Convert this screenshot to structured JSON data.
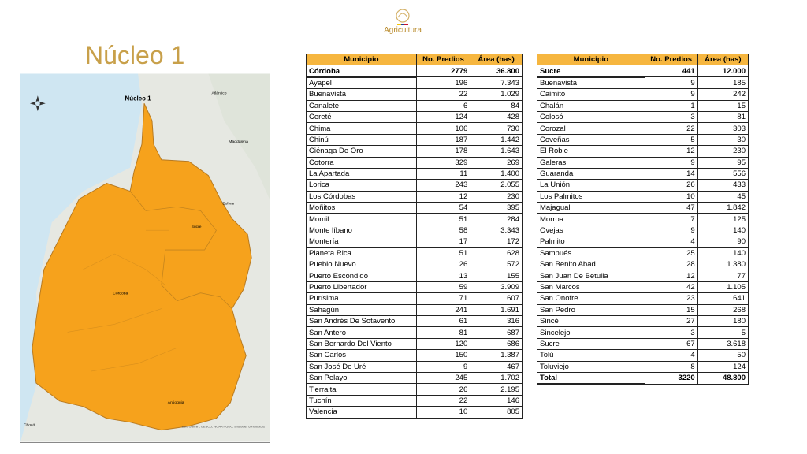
{
  "header": {
    "logo": "Agricultura",
    "title": "Núcleo 1"
  },
  "map": {
    "title": "Núcleo 1",
    "labels": [
      "Atlántico",
      "Magdalena",
      "Bolívar",
      "Sucre",
      "Córdoba",
      "Antioquia",
      "Chocó"
    ],
    "attribution": "Esri, Garmin, GEBCO, NOAA NGDC, and other contributors"
  },
  "tables": [
    {
      "columns": [
        "Municipio",
        "No. Predios",
        "Área (has)"
      ],
      "summary": [
        "Córdoba",
        2779,
        "36.800"
      ],
      "rows": [
        [
          "Ayapel",
          196,
          "7.343"
        ],
        [
          "Buenavista",
          22,
          "1.029"
        ],
        [
          "Canalete",
          6,
          "84"
        ],
        [
          "Cereté",
          124,
          "428"
        ],
        [
          "Chima",
          106,
          "730"
        ],
        [
          "Chinú",
          187,
          "1.442"
        ],
        [
          "Ciénaga De Oro",
          178,
          "1.643"
        ],
        [
          "Cotorra",
          329,
          "269"
        ],
        [
          "La Apartada",
          11,
          "1.400"
        ],
        [
          "Lorica",
          243,
          "2.055"
        ],
        [
          "Los Córdobas",
          12,
          "230"
        ],
        [
          "Moñitos",
          54,
          "395"
        ],
        [
          "Momil",
          51,
          "284"
        ],
        [
          "Monte líbano",
          58,
          "3.343"
        ],
        [
          "Montería",
          17,
          "172"
        ],
        [
          "Planeta Rica",
          51,
          "628"
        ],
        [
          "Pueblo Nuevo",
          26,
          "572"
        ],
        [
          "Puerto Escondido",
          13,
          "155"
        ],
        [
          "Puerto Libertador",
          59,
          "3.909"
        ],
        [
          "Purísima",
          71,
          "607"
        ],
        [
          "Sahagún",
          241,
          "1.691"
        ],
        [
          "San Andrés De Sotavento",
          61,
          "316"
        ],
        [
          "San Antero",
          81,
          "687"
        ],
        [
          "San Bernardo Del Viento",
          120,
          "686"
        ],
        [
          "San Carlos",
          150,
          "1.387"
        ],
        [
          "San José De Uré",
          9,
          "467"
        ],
        [
          "San Pelayo",
          245,
          "1.702"
        ],
        [
          "Tierralta",
          26,
          "2.195"
        ],
        [
          "Tuchín",
          22,
          "146"
        ],
        [
          "Valencia",
          10,
          "805"
        ]
      ]
    },
    {
      "columns": [
        "Municipio",
        "No. Predios",
        "Área (has)"
      ],
      "summary": [
        "Sucre",
        441,
        "12.000"
      ],
      "rows": [
        [
          "Buenavista",
          9,
          "185"
        ],
        [
          "Caimito",
          9,
          "242"
        ],
        [
          "Chalán",
          1,
          "15"
        ],
        [
          "Colosó",
          3,
          "81"
        ],
        [
          "Corozal",
          22,
          "303"
        ],
        [
          "Coveñas",
          5,
          "30"
        ],
        [
          "El Roble",
          12,
          "230"
        ],
        [
          "Galeras",
          9,
          "95"
        ],
        [
          "Guaranda",
          14,
          "556"
        ],
        [
          "La Unión",
          26,
          "433"
        ],
        [
          "Los Palmitos",
          10,
          "45"
        ],
        [
          "Majagual",
          47,
          "1.842"
        ],
        [
          "Morroa",
          7,
          "125"
        ],
        [
          "Ovejas",
          9,
          "140"
        ],
        [
          "Palmito",
          4,
          "90"
        ],
        [
          "Sampués",
          25,
          "140"
        ],
        [
          "San Benito Abad",
          28,
          "1.380"
        ],
        [
          "San Juan De Betulia",
          12,
          "77"
        ],
        [
          "San Marcos",
          42,
          "1.105"
        ],
        [
          "San Onofre",
          23,
          "641"
        ],
        [
          "San Pedro",
          15,
          "268"
        ],
        [
          "Sincé",
          27,
          "180"
        ],
        [
          "Sincelejo",
          3,
          "5"
        ],
        [
          "Sucre",
          67,
          "3.618"
        ],
        [
          "Tolú",
          4,
          "50"
        ],
        [
          "Toluviejo",
          8,
          "124"
        ]
      ],
      "total": [
        "Total",
        3220,
        "48.800"
      ]
    }
  ]
}
